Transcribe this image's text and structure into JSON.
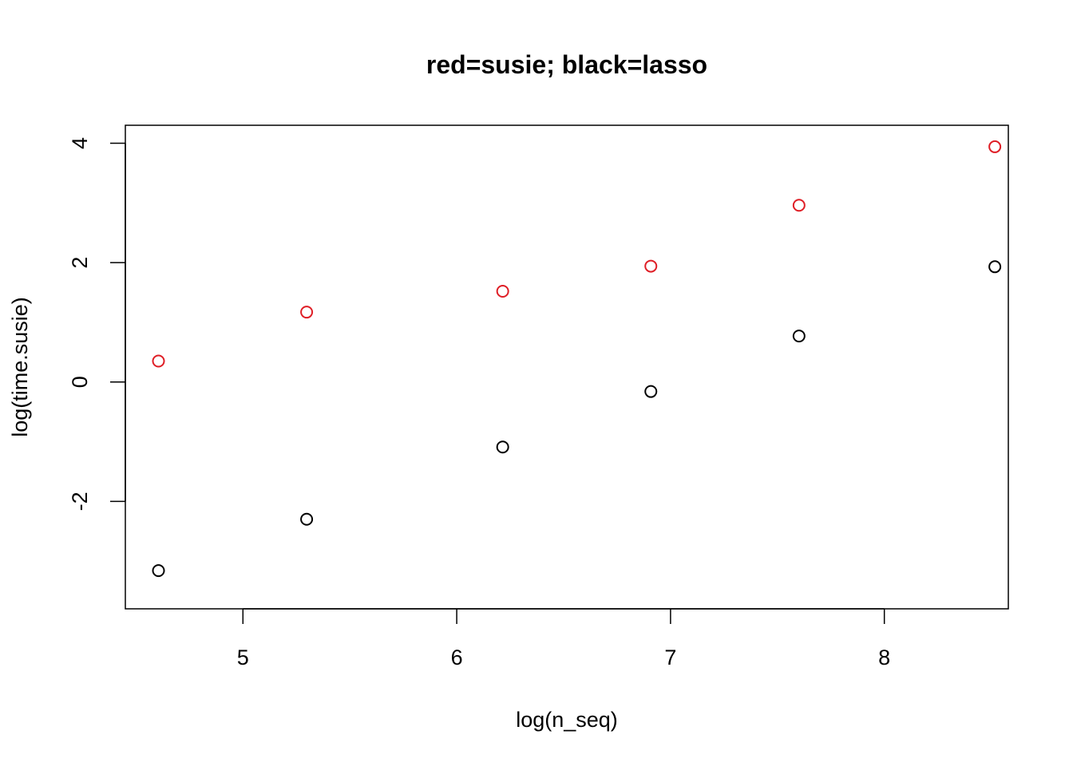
{
  "chart_data": {
    "type": "scatter",
    "title": "red=susie; black=lasso",
    "xlabel": "log(n_seq)",
    "ylabel": "log(time.susie)",
    "xlim": [
      4.45,
      8.58
    ],
    "ylim": [
      -3.8,
      4.3
    ],
    "x_ticks": [
      5,
      6,
      7,
      8
    ],
    "x_tick_labels": [
      "5",
      "6",
      "7",
      "8"
    ],
    "y_ticks": [
      -2,
      0,
      2,
      4
    ],
    "y_tick_labels": [
      "-2",
      "0",
      "2",
      "4"
    ],
    "grid": false,
    "legend": "none",
    "series": [
      {
        "color": "#df1e26",
        "x": [
          4.605,
          5.298,
          6.215,
          6.908,
          7.601,
          8.517
        ],
        "y": [
          0.35,
          1.17,
          1.52,
          1.94,
          2.96,
          3.94
        ]
      },
      {
        "color": "#000000",
        "x": [
          4.605,
          5.298,
          6.215,
          6.908,
          7.601,
          8.517
        ],
        "y": [
          -3.16,
          -2.3,
          -1.09,
          -0.16,
          0.77,
          1.93
        ]
      }
    ]
  }
}
